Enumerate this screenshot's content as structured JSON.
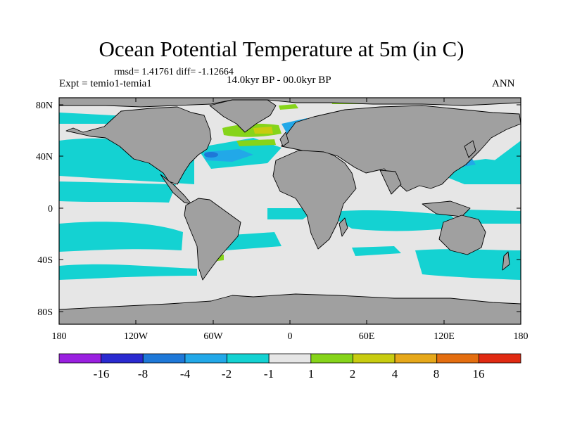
{
  "figure": {
    "title": "Ocean Potential Temperature at 5m (in C)",
    "stats": "rmsd= 1.41761 diff= -1.12664",
    "period": "14.0kyr BP - 00.0kyr BP",
    "experiment": "Expt = temio1-temia1",
    "season": "ANN"
  },
  "map": {
    "land_color": "#a0a0a0",
    "lat_ticks": [
      "80N",
      "40N",
      "0",
      "40S",
      "80S"
    ],
    "lon_ticks": [
      "180",
      "120W",
      "60W",
      "0",
      "60E",
      "120E",
      "180"
    ]
  },
  "colorbar": {
    "colors": [
      "#9a20e0",
      "#2a2ad0",
      "#1e78d8",
      "#22a8e8",
      "#14d2d2",
      "#e6e6e6",
      "#86d41a",
      "#c8cc10",
      "#e6a81a",
      "#e46e10",
      "#e02a12"
    ],
    "labels": [
      "-16",
      "-8",
      "-4",
      "-2",
      "-1",
      "1",
      "2",
      "4",
      "8",
      "16"
    ]
  }
}
